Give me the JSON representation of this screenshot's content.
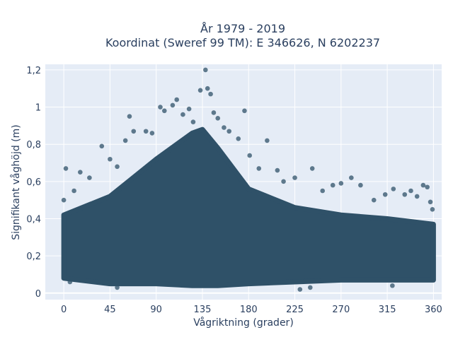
{
  "chart_data": {
    "type": "scatter",
    "title_line1": "År 1979 - 2019",
    "title_line2": "Koordinat (Sweref 99 TM): E 346626, N 6202237",
    "xlabel": "Vågriktning (grader)",
    "ylabel": "Signifikant våghöjd (m)",
    "xlim": [
      -18,
      368
    ],
    "ylim": [
      -0.035,
      1.23
    ],
    "x_ticks": [
      0,
      45,
      90,
      135,
      180,
      225,
      270,
      315,
      360
    ],
    "x_tick_labels": [
      "0",
      "45",
      "90",
      "135",
      "180",
      "225",
      "270",
      "315",
      "360"
    ],
    "y_ticks": [
      0,
      0.2,
      0.4,
      0.6,
      0.8,
      1.0,
      1.2
    ],
    "y_tick_labels": [
      "0",
      "0,2",
      "0,4",
      "0,6",
      "0,8",
      "1",
      "1,2"
    ],
    "grid": true,
    "background_color": "#e5ecf6",
    "marker_color": "#2f5168",
    "dense_band": {
      "x": [
        0,
        360
      ],
      "y_envelope": [
        {
          "x": 0,
          "lo": 0.08,
          "hi": 0.42
        },
        {
          "x": 45,
          "lo": 0.05,
          "hi": 0.52
        },
        {
          "x": 90,
          "lo": 0.05,
          "hi": 0.72
        },
        {
          "x": 125,
          "lo": 0.04,
          "hi": 0.86
        },
        {
          "x": 135,
          "lo": 0.04,
          "hi": 0.88
        },
        {
          "x": 150,
          "lo": 0.04,
          "hi": 0.78
        },
        {
          "x": 180,
          "lo": 0.05,
          "hi": 0.56
        },
        {
          "x": 225,
          "lo": 0.06,
          "hi": 0.46
        },
        {
          "x": 270,
          "lo": 0.07,
          "hi": 0.42
        },
        {
          "x": 315,
          "lo": 0.07,
          "hi": 0.4
        },
        {
          "x": 360,
          "lo": 0.07,
          "hi": 0.37
        }
      ]
    },
    "outliers": [
      {
        "x": 2,
        "y": 0.67
      },
      {
        "x": 0,
        "y": 0.5
      },
      {
        "x": 10,
        "y": 0.55
      },
      {
        "x": 16,
        "y": 0.65
      },
      {
        "x": 25,
        "y": 0.62
      },
      {
        "x": 37,
        "y": 0.79
      },
      {
        "x": 45,
        "y": 0.72
      },
      {
        "x": 52,
        "y": 0.68
      },
      {
        "x": 60,
        "y": 0.82
      },
      {
        "x": 64,
        "y": 0.95
      },
      {
        "x": 68,
        "y": 0.87
      },
      {
        "x": 80,
        "y": 0.87
      },
      {
        "x": 86,
        "y": 0.86
      },
      {
        "x": 94,
        "y": 1.0
      },
      {
        "x": 98,
        "y": 0.98
      },
      {
        "x": 106,
        "y": 1.01
      },
      {
        "x": 110,
        "y": 1.04
      },
      {
        "x": 116,
        "y": 0.96
      },
      {
        "x": 122,
        "y": 0.99
      },
      {
        "x": 126,
        "y": 0.92
      },
      {
        "x": 133,
        "y": 1.09
      },
      {
        "x": 138,
        "y": 1.2
      },
      {
        "x": 140,
        "y": 1.1
      },
      {
        "x": 143,
        "y": 1.07
      },
      {
        "x": 146,
        "y": 0.97
      },
      {
        "x": 150,
        "y": 0.94
      },
      {
        "x": 156,
        "y": 0.89
      },
      {
        "x": 161,
        "y": 0.87
      },
      {
        "x": 170,
        "y": 0.83
      },
      {
        "x": 176,
        "y": 0.98
      },
      {
        "x": 181,
        "y": 0.74
      },
      {
        "x": 190,
        "y": 0.67
      },
      {
        "x": 198,
        "y": 0.82
      },
      {
        "x": 208,
        "y": 0.66
      },
      {
        "x": 214,
        "y": 0.6
      },
      {
        "x": 225,
        "y": 0.62
      },
      {
        "x": 242,
        "y": 0.67
      },
      {
        "x": 252,
        "y": 0.55
      },
      {
        "x": 262,
        "y": 0.58
      },
      {
        "x": 270,
        "y": 0.59
      },
      {
        "x": 280,
        "y": 0.62
      },
      {
        "x": 289,
        "y": 0.58
      },
      {
        "x": 302,
        "y": 0.5
      },
      {
        "x": 313,
        "y": 0.53
      },
      {
        "x": 321,
        "y": 0.56
      },
      {
        "x": 332,
        "y": 0.53
      },
      {
        "x": 338,
        "y": 0.55
      },
      {
        "x": 344,
        "y": 0.52
      },
      {
        "x": 350,
        "y": 0.58
      },
      {
        "x": 354,
        "y": 0.57
      },
      {
        "x": 357,
        "y": 0.49
      },
      {
        "x": 359,
        "y": 0.45
      },
      {
        "x": 6,
        "y": 0.06
      },
      {
        "x": 52,
        "y": 0.03
      },
      {
        "x": 230,
        "y": 0.02
      },
      {
        "x": 240,
        "y": 0.03
      },
      {
        "x": 320,
        "y": 0.04
      }
    ]
  }
}
